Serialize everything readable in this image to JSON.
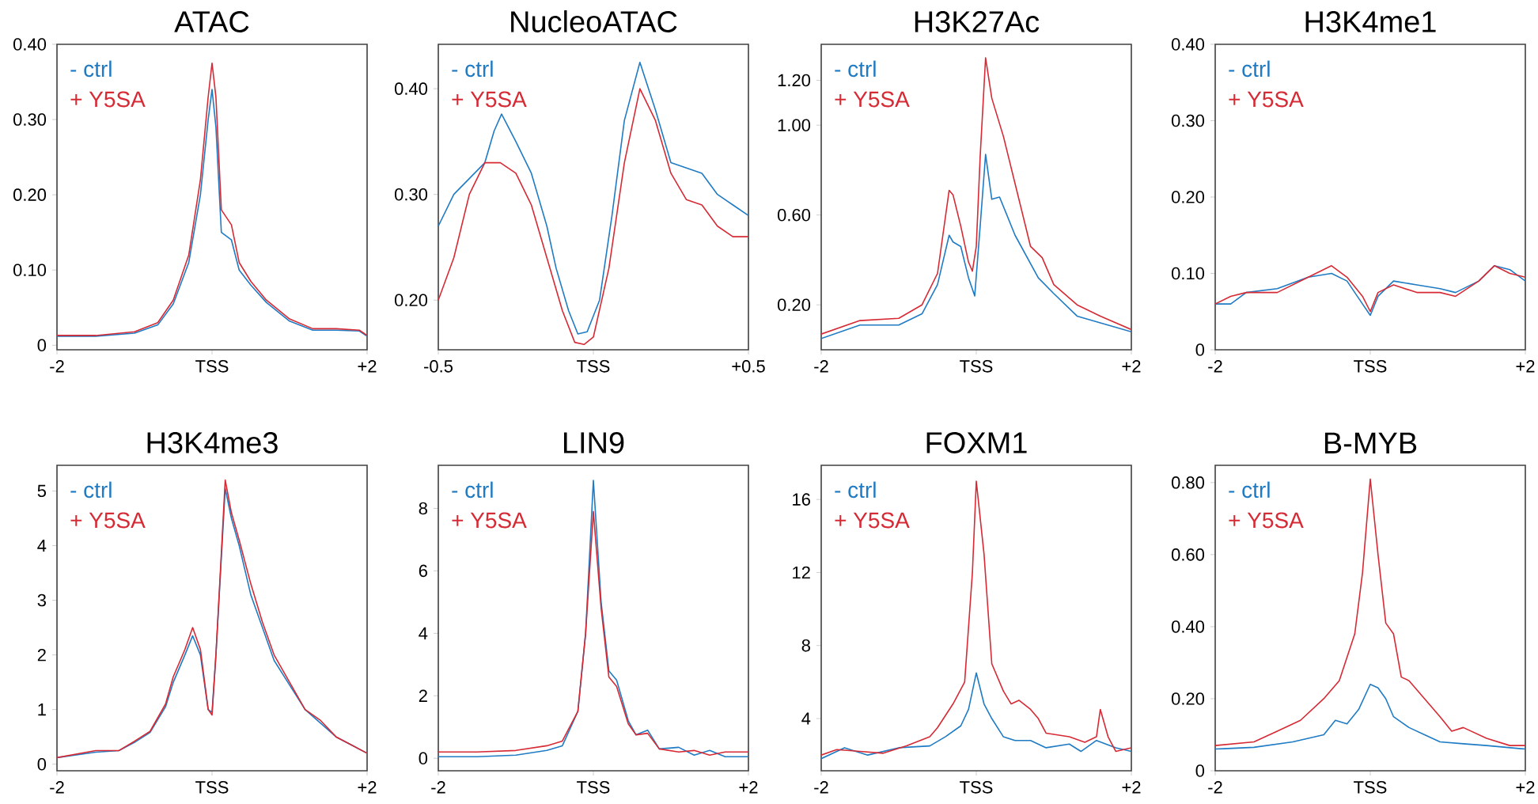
{
  "chart_data": [
    {
      "type": "line",
      "title": "ATAC",
      "xlim": [
        -2,
        2
      ],
      "ylim": [
        -0.006,
        0.4
      ],
      "xticks": [
        -2,
        {
          "value": 0,
          "label": "TSS"
        },
        {
          "value": 2,
          "label": "+2"
        }
      ],
      "yticks": [
        0,
        {
          "value": 0.1,
          "label": "0.10"
        },
        {
          "value": 0.2,
          "label": "0.20"
        },
        {
          "value": 0.3,
          "label": "0.30"
        },
        {
          "value": 0.4,
          "label": "0.40"
        }
      ],
      "series": [
        {
          "name": "- ctrl",
          "color": "#1f7bc4",
          "x": [
            -2,
            -1.5,
            -1.0,
            -0.7,
            -0.5,
            -0.3,
            -0.15,
            -0.05,
            0,
            0.05,
            0.12,
            0.25,
            0.35,
            0.5,
            0.7,
            1.0,
            1.3,
            1.6,
            1.9,
            2.0
          ],
          "values": [
            0.012,
            0.012,
            0.016,
            0.027,
            0.055,
            0.11,
            0.2,
            0.3,
            0.34,
            0.29,
            0.15,
            0.14,
            0.1,
            0.08,
            0.057,
            0.032,
            0.02,
            0.02,
            0.019,
            0.012
          ]
        },
        {
          "name": "+ Y5SA",
          "color": "#d62a35",
          "x": [
            -2,
            -1.5,
            -1.0,
            -0.7,
            -0.5,
            -0.3,
            -0.15,
            -0.05,
            0,
            0.05,
            0.12,
            0.25,
            0.35,
            0.5,
            0.7,
            1.0,
            1.3,
            1.6,
            1.9,
            2.0
          ],
          "values": [
            0.013,
            0.013,
            0.018,
            0.03,
            0.06,
            0.12,
            0.22,
            0.33,
            0.375,
            0.33,
            0.18,
            0.16,
            0.11,
            0.085,
            0.06,
            0.035,
            0.022,
            0.022,
            0.02,
            0.013
          ]
        }
      ]
    },
    {
      "type": "line",
      "title": "NucleoATAC",
      "xlim": [
        -0.5,
        0.5
      ],
      "ylim": [
        0.153,
        0.442
      ],
      "xticks": [
        -0.5,
        {
          "value": 0,
          "label": "TSS"
        },
        {
          "value": 0.5,
          "label": "+0.5"
        }
      ],
      "yticks": [
        {
          "value": 0.2,
          "label": "0.20"
        },
        {
          "value": 0.3,
          "label": "0.30"
        },
        {
          "value": 0.4,
          "label": "0.40"
        }
      ],
      "series": [
        {
          "name": "- ctrl",
          "color": "#1f7bc4",
          "x": [
            -0.5,
            -0.45,
            -0.4,
            -0.35,
            -0.32,
            -0.296,
            -0.25,
            -0.2,
            -0.15,
            -0.12,
            -0.08,
            -0.05,
            -0.02,
            0.02,
            0.06,
            0.1,
            0.15,
            0.2,
            0.25,
            0.3,
            0.35,
            0.4,
            0.45,
            0.5
          ],
          "values": [
            0.27,
            0.3,
            0.315,
            0.33,
            0.36,
            0.376,
            0.35,
            0.32,
            0.27,
            0.23,
            0.19,
            0.168,
            0.17,
            0.2,
            0.28,
            0.37,
            0.425,
            0.38,
            0.33,
            0.325,
            0.32,
            0.3,
            0.29,
            0.28
          ]
        },
        {
          "name": "+ Y5SA",
          "color": "#d62a35",
          "x": [
            -0.5,
            -0.45,
            -0.4,
            -0.35,
            -0.3,
            -0.25,
            -0.2,
            -0.15,
            -0.1,
            -0.06,
            -0.03,
            0,
            0.05,
            0.1,
            0.15,
            0.2,
            0.25,
            0.3,
            0.35,
            0.4,
            0.45,
            0.5
          ],
          "values": [
            0.2,
            0.24,
            0.3,
            0.33,
            0.33,
            0.32,
            0.29,
            0.24,
            0.19,
            0.16,
            0.158,
            0.165,
            0.23,
            0.33,
            0.4,
            0.37,
            0.32,
            0.295,
            0.29,
            0.27,
            0.26,
            0.26
          ]
        }
      ]
    },
    {
      "type": "line",
      "title": "H3K27Ac",
      "xlim": [
        -2,
        2
      ],
      "ylim": [
        0,
        1.36
      ],
      "xticks": [
        -2,
        {
          "value": 0,
          "label": "TSS"
        },
        {
          "value": 2,
          "label": "+2"
        }
      ],
      "yticks": [
        {
          "value": 0.2,
          "label": "0.20"
        },
        {
          "value": 0.6,
          "label": "0.60"
        },
        {
          "value": 1.0,
          "label": "1.00"
        },
        {
          "value": 1.2,
          "label": "1.20"
        }
      ],
      "series": [
        {
          "name": "- ctrl",
          "color": "#1f7bc4",
          "x": [
            -2,
            -1.5,
            -1.0,
            -0.7,
            -0.5,
            -0.35,
            -0.3,
            -0.2,
            -0.1,
            -0.02,
            0.05,
            0.12,
            0.2,
            0.3,
            0.5,
            0.8,
            1.0,
            1.3,
            1.6,
            2.0
          ],
          "values": [
            0.05,
            0.11,
            0.11,
            0.16,
            0.29,
            0.51,
            0.48,
            0.46,
            0.32,
            0.24,
            0.55,
            0.87,
            0.67,
            0.68,
            0.51,
            0.32,
            0.25,
            0.15,
            0.12,
            0.08
          ]
        },
        {
          "name": "+ Y5SA",
          "color": "#d62a35",
          "x": [
            -2,
            -1.5,
            -1.0,
            -0.7,
            -0.5,
            -0.35,
            -0.3,
            -0.2,
            -0.1,
            -0.05,
            0,
            0.05,
            0.12,
            0.2,
            0.35,
            0.5,
            0.7,
            0.85,
            1.0,
            1.3,
            1.6,
            2.0
          ],
          "values": [
            0.07,
            0.13,
            0.14,
            0.2,
            0.34,
            0.71,
            0.69,
            0.55,
            0.39,
            0.35,
            0.46,
            0.86,
            1.3,
            1.12,
            0.95,
            0.74,
            0.46,
            0.41,
            0.29,
            0.2,
            0.15,
            0.09
          ]
        }
      ]
    },
    {
      "type": "line",
      "title": "H3K4me1",
      "xlim": [
        -2,
        2
      ],
      "ylim": [
        0,
        0.4
      ],
      "xticks": [
        -2,
        {
          "value": 0,
          "label": "TSS"
        },
        {
          "value": 2,
          "label": "+2"
        }
      ],
      "yticks": [
        0,
        {
          "value": 0.1,
          "label": "0.10"
        },
        {
          "value": 0.2,
          "label": "0.20"
        },
        {
          "value": 0.3,
          "label": "0.30"
        },
        {
          "value": 0.4,
          "label": "0.40"
        }
      ],
      "series": [
        {
          "name": "- ctrl",
          "color": "#1f7bc4",
          "x": [
            -2,
            -1.8,
            -1.6,
            -1.2,
            -0.8,
            -0.5,
            -0.3,
            -0.1,
            0,
            0.1,
            0.3,
            0.6,
            0.9,
            1.1,
            1.4,
            1.6,
            1.8,
            2.0
          ],
          "values": [
            0.06,
            0.06,
            0.075,
            0.08,
            0.095,
            0.1,
            0.09,
            0.06,
            0.045,
            0.07,
            0.09,
            0.085,
            0.08,
            0.075,
            0.09,
            0.11,
            0.105,
            0.09
          ]
        },
        {
          "name": "+ Y5SA",
          "color": "#d62a35",
          "x": [
            -2,
            -1.8,
            -1.6,
            -1.2,
            -0.8,
            -0.5,
            -0.3,
            -0.1,
            0,
            0.1,
            0.3,
            0.6,
            0.9,
            1.1,
            1.4,
            1.6,
            1.8,
            2.0
          ],
          "values": [
            0.06,
            0.07,
            0.075,
            0.075,
            0.095,
            0.11,
            0.095,
            0.07,
            0.05,
            0.075,
            0.085,
            0.075,
            0.075,
            0.07,
            0.09,
            0.11,
            0.1,
            0.095
          ]
        }
      ]
    },
    {
      "type": "line",
      "title": "H3K4me3",
      "xlim": [
        -2,
        2
      ],
      "ylim": [
        -0.12,
        5.47
      ],
      "xticks": [
        -2,
        {
          "value": 0,
          "label": "TSS"
        },
        {
          "value": 2,
          "label": "+2"
        }
      ],
      "yticks": [
        0,
        1,
        2,
        3,
        4,
        5
      ],
      "series": [
        {
          "name": "- ctrl",
          "color": "#1f7bc4",
          "x": [
            -2,
            -1.5,
            -1.2,
            -1.0,
            -0.8,
            -0.6,
            -0.5,
            -0.35,
            -0.25,
            -0.15,
            -0.05,
            0,
            0.05,
            0.17,
            0.25,
            0.35,
            0.5,
            0.65,
            0.8,
            1.0,
            1.2,
            1.4,
            1.6,
            1.8,
            2.0
          ],
          "values": [
            0.12,
            0.22,
            0.25,
            0.4,
            0.58,
            1.05,
            1.5,
            2.0,
            2.35,
            2.0,
            1.0,
            0.95,
            2.0,
            5.05,
            4.5,
            4.0,
            3.1,
            2.5,
            1.9,
            1.45,
            1.0,
            0.75,
            0.5,
            0.35,
            0.2
          ]
        },
        {
          "name": "+ Y5SA",
          "color": "#d62a35",
          "x": [
            -2,
            -1.5,
            -1.2,
            -1.0,
            -0.8,
            -0.6,
            -0.5,
            -0.35,
            -0.25,
            -0.15,
            -0.05,
            0,
            0.05,
            0.17,
            0.25,
            0.35,
            0.5,
            0.65,
            0.8,
            1.0,
            1.2,
            1.4,
            1.6,
            1.8,
            2.0
          ],
          "values": [
            0.12,
            0.25,
            0.25,
            0.42,
            0.6,
            1.1,
            1.6,
            2.1,
            2.5,
            2.1,
            1.0,
            0.9,
            2.0,
            5.2,
            4.6,
            4.1,
            3.3,
            2.6,
            2.0,
            1.5,
            1.0,
            0.8,
            0.5,
            0.35,
            0.2
          ]
        }
      ]
    },
    {
      "type": "line",
      "title": "LIN9",
      "xlim": [
        -2,
        2
      ],
      "ylim": [
        -0.4,
        9.38
      ],
      "xticks": [
        -2,
        {
          "value": 0,
          "label": "TSS"
        },
        {
          "value": 2,
          "label": "+2"
        }
      ],
      "yticks": [
        0,
        2,
        4,
        6,
        8
      ],
      "series": [
        {
          "name": "- ctrl",
          "color": "#1f7bc4",
          "x": [
            -2,
            -1.5,
            -1.0,
            -0.6,
            -0.4,
            -0.2,
            -0.1,
            0,
            0.1,
            0.2,
            0.3,
            0.45,
            0.55,
            0.7,
            0.85,
            1.1,
            1.3,
            1.5,
            1.7,
            2.0
          ],
          "values": [
            0.05,
            0.05,
            0.1,
            0.25,
            0.4,
            1.5,
            4.0,
            8.9,
            5.0,
            2.8,
            2.5,
            1.2,
            0.75,
            0.9,
            0.3,
            0.35,
            0.1,
            0.25,
            0.05,
            0.05
          ]
        },
        {
          "name": "+ Y5SA",
          "color": "#d62a35",
          "x": [
            -2,
            -1.5,
            -1.0,
            -0.6,
            -0.4,
            -0.2,
            -0.1,
            0,
            0.1,
            0.2,
            0.3,
            0.45,
            0.55,
            0.7,
            0.85,
            1.1,
            1.3,
            1.5,
            1.7,
            2.0
          ],
          "values": [
            0.2,
            0.2,
            0.25,
            0.4,
            0.55,
            1.5,
            4.0,
            7.9,
            4.8,
            2.6,
            2.3,
            1.1,
            0.75,
            0.8,
            0.3,
            0.2,
            0.25,
            0.1,
            0.2,
            0.2
          ]
        }
      ]
    },
    {
      "type": "line",
      "title": "FOXM1",
      "xlim": [
        -2,
        2
      ],
      "ylim": [
        1.14,
        17.87
      ],
      "xticks": [
        -2,
        {
          "value": 0,
          "label": "TSS"
        },
        {
          "value": 2,
          "label": "+2"
        }
      ],
      "yticks": [
        4,
        8,
        12,
        16
      ],
      "series": [
        {
          "name": "- ctrl",
          "color": "#1f7bc4",
          "x": [
            -2,
            -1.7,
            -1.4,
            -1.0,
            -0.6,
            -0.4,
            -0.2,
            -0.1,
            0,
            0.1,
            0.2,
            0.35,
            0.5,
            0.7,
            0.9,
            1.2,
            1.35,
            1.55,
            1.8,
            2.0
          ],
          "values": [
            1.8,
            2.4,
            2.0,
            2.4,
            2.5,
            3.0,
            3.6,
            4.5,
            6.5,
            4.8,
            4.0,
            3.0,
            2.8,
            2.8,
            2.4,
            2.6,
            2.2,
            2.8,
            2.4,
            2.2
          ]
        },
        {
          "name": "+ Y5SA",
          "color": "#d62a35",
          "x": [
            -2,
            -1.8,
            -1.5,
            -1.2,
            -0.9,
            -0.6,
            -0.5,
            -0.3,
            -0.15,
            -0.05,
            0,
            0.1,
            0.2,
            0.35,
            0.45,
            0.55,
            0.7,
            0.8,
            0.9,
            1.2,
            1.4,
            1.55,
            1.6,
            1.7,
            1.8,
            2.0
          ],
          "values": [
            2.0,
            2.3,
            2.2,
            2.1,
            2.5,
            3.0,
            3.5,
            4.8,
            6.0,
            12,
            17.0,
            13,
            7.0,
            5.5,
            4.8,
            5.0,
            4.5,
            4.0,
            3.2,
            3.0,
            2.7,
            3.0,
            4.5,
            3.0,
            2.2,
            2.4
          ]
        }
      ]
    },
    {
      "type": "line",
      "title": "B-MYB",
      "xlim": [
        -2,
        2
      ],
      "ylim": [
        0,
        0.848
      ],
      "xticks": [
        -2,
        {
          "value": 0,
          "label": "TSS"
        },
        {
          "value": 2,
          "label": "+2"
        }
      ],
      "yticks": [
        0,
        {
          "value": 0.2,
          "label": "0.20"
        },
        {
          "value": 0.4,
          "label": "0.40"
        },
        {
          "value": 0.6,
          "label": "0.60"
        },
        {
          "value": 0.8,
          "label": "0.80"
        }
      ],
      "series": [
        {
          "name": "- ctrl",
          "color": "#1f7bc4",
          "x": [
            -2,
            -1.5,
            -1.0,
            -0.6,
            -0.45,
            -0.3,
            -0.15,
            0,
            0.1,
            0.2,
            0.3,
            0.5,
            0.7,
            0.9,
            1.2,
            1.5,
            2.0
          ],
          "values": [
            0.06,
            0.065,
            0.08,
            0.1,
            0.14,
            0.13,
            0.17,
            0.24,
            0.23,
            0.2,
            0.15,
            0.12,
            0.1,
            0.08,
            0.075,
            0.07,
            0.06
          ]
        },
        {
          "name": "+ Y5SA",
          "color": "#d62a35",
          "x": [
            -2,
            -1.5,
            -1.2,
            -0.9,
            -0.6,
            -0.4,
            -0.2,
            -0.1,
            0,
            0.1,
            0.2,
            0.3,
            0.4,
            0.5,
            0.7,
            0.9,
            1.05,
            1.2,
            1.5,
            1.8,
            2.0
          ],
          "values": [
            0.07,
            0.08,
            0.11,
            0.14,
            0.2,
            0.25,
            0.38,
            0.55,
            0.81,
            0.6,
            0.41,
            0.38,
            0.26,
            0.25,
            0.2,
            0.15,
            0.11,
            0.12,
            0.09,
            0.07,
            0.07
          ]
        }
      ]
    }
  ]
}
